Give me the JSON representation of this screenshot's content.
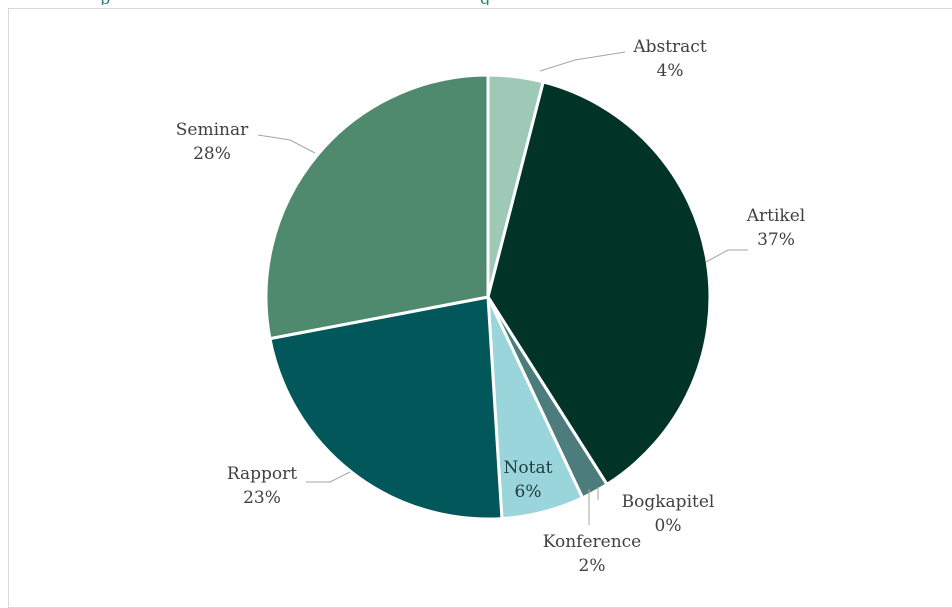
{
  "header_snippet": {
    "left": "p",
    "right": "g"
  },
  "chart_data": {
    "type": "pie",
    "title": "",
    "unit": "%",
    "slices": [
      {
        "label": "Abstract",
        "value": 4,
        "display": "4%",
        "color": "#9dc9b6"
      },
      {
        "label": "Artikel",
        "value": 37,
        "display": "37%",
        "color": "#013326"
      },
      {
        "label": "Bogkapitel",
        "value": 0,
        "display": "0%",
        "color": "#1f5a57"
      },
      {
        "label": "Konference",
        "value": 2,
        "display": "2%",
        "color": "#4c7d7c"
      },
      {
        "label": "Notat",
        "value": 6,
        "display": "6%",
        "color": "#9bd5dc"
      },
      {
        "label": "Rapport",
        "value": 23,
        "display": "23%",
        "color": "#01575a"
      },
      {
        "label": "Seminar",
        "value": 28,
        "display": "28%",
        "color": "#4f8a6f"
      }
    ],
    "legend": "none"
  }
}
